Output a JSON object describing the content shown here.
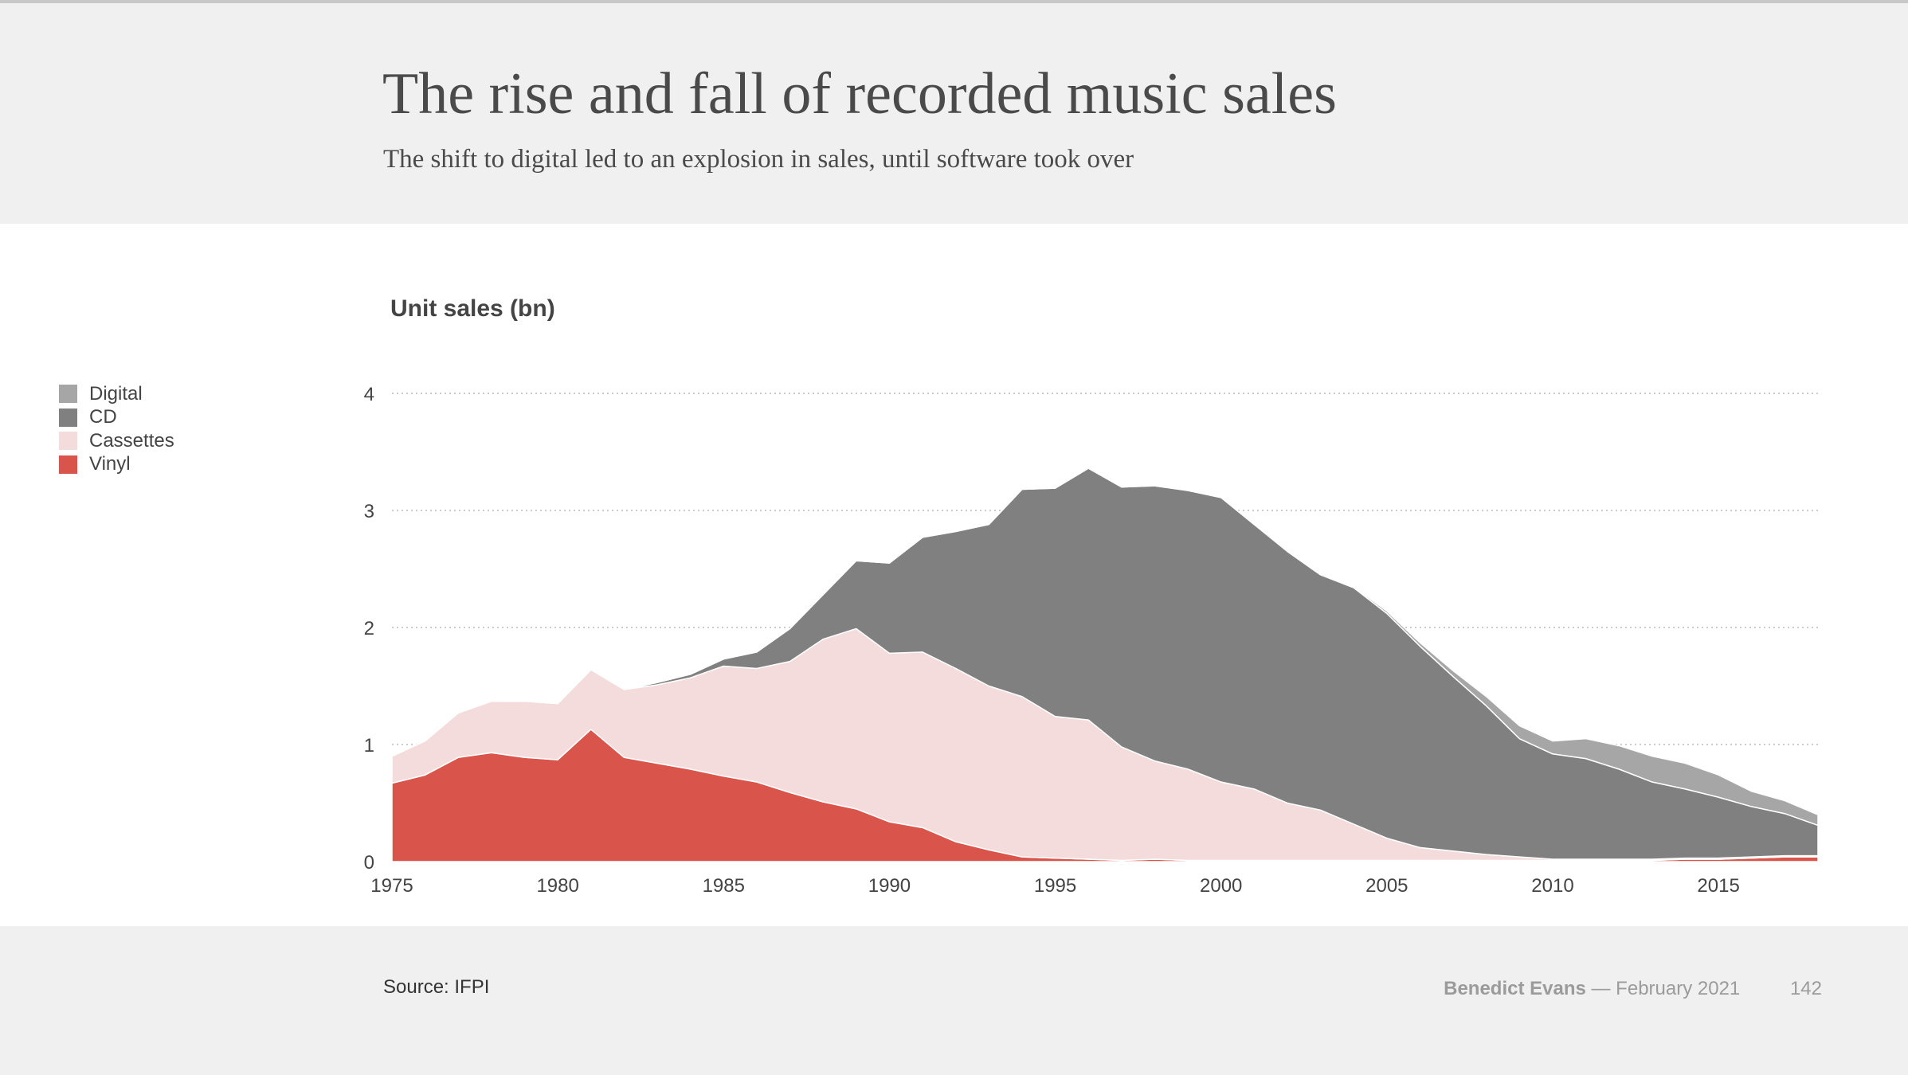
{
  "header": {
    "title": "The rise and fall of recorded music sales",
    "subtitle": "The shift to digital led to an explosion in sales, until software took over"
  },
  "footer": {
    "source": "Source: IFPI",
    "author": "Benedict Evans",
    "date": "— February 2021",
    "page": "142"
  },
  "colors": {
    "Vinyl": "#d9544b",
    "Cassettes": "#f5dcdc",
    "CD": "#808080",
    "Digital": "#a6a6a6",
    "grid": "#bbbbbb"
  },
  "chart_data": {
    "type": "area",
    "stacked": true,
    "title": "The rise and fall of recorded music sales",
    "ylabel": "Unit sales (bn)",
    "xlim": [
      1975,
      2018
    ],
    "ylim": [
      0,
      4
    ],
    "xticks": [
      "1975",
      "1980",
      "1985",
      "1990",
      "1995",
      "2000",
      "2005",
      "2010",
      "2015"
    ],
    "yticks": [
      "0",
      "1",
      "2",
      "3",
      "4"
    ],
    "grid": "horizontal dotted",
    "legend_position": "left",
    "legend": [
      "Digital",
      "CD",
      "Cassettes",
      "Vinyl"
    ],
    "x": [
      1975,
      1976,
      1977,
      1978,
      1979,
      1980,
      1981,
      1982,
      1983,
      1984,
      1985,
      1986,
      1987,
      1988,
      1989,
      1990,
      1991,
      1992,
      1993,
      1994,
      1995,
      1996,
      1997,
      1998,
      1999,
      2000,
      2001,
      2002,
      2003,
      2004,
      2005,
      2006,
      2007,
      2008,
      2009,
      2010,
      2011,
      2012,
      2013,
      2014,
      2015,
      2016,
      2017,
      2018
    ],
    "series": [
      {
        "name": "Vinyl",
        "values": [
          0.67,
          0.74,
          0.89,
          0.93,
          0.89,
          0.87,
          1.13,
          0.89,
          0.84,
          0.79,
          0.73,
          0.68,
          0.59,
          0.51,
          0.45,
          0.34,
          0.29,
          0.17,
          0.1,
          0.04,
          0.03,
          0.02,
          0.01,
          0.02,
          0.01,
          0.01,
          0.01,
          0.01,
          0.01,
          0.01,
          0.01,
          0.01,
          0.01,
          0.01,
          0.01,
          0.01,
          0.01,
          0.01,
          0.01,
          0.02,
          0.02,
          0.03,
          0.04,
          0.04
        ]
      },
      {
        "name": "Cassettes",
        "values": [
          0.23,
          0.29,
          0.38,
          0.44,
          0.48,
          0.48,
          0.51,
          0.58,
          0.67,
          0.78,
          0.94,
          0.97,
          1.12,
          1.39,
          1.54,
          1.44,
          1.5,
          1.48,
          1.4,
          1.37,
          1.21,
          1.19,
          0.97,
          0.84,
          0.78,
          0.67,
          0.61,
          0.49,
          0.43,
          0.31,
          0.19,
          0.11,
          0.08,
          0.05,
          0.03,
          0.01,
          0.01,
          0.01,
          0.01,
          0.01,
          0.01,
          0.01,
          0.01,
          0.01
        ]
      },
      {
        "name": "CD",
        "values": [
          0,
          0,
          0,
          0,
          0,
          0,
          0,
          0,
          0.02,
          0.03,
          0.06,
          0.14,
          0.28,
          0.38,
          0.58,
          0.77,
          0.98,
          1.17,
          1.38,
          1.77,
          1.95,
          2.15,
          2.22,
          2.35,
          2.38,
          2.43,
          2.26,
          2.15,
          2.01,
          2.02,
          1.92,
          1.72,
          1.49,
          1.27,
          1.01,
          0.9,
          0.86,
          0.77,
          0.66,
          0.59,
          0.52,
          0.43,
          0.36,
          0.26
        ]
      },
      {
        "name": "Digital",
        "values": [
          0,
          0,
          0,
          0,
          0,
          0,
          0,
          0,
          0,
          0,
          0,
          0,
          0,
          0,
          0,
          0,
          0,
          0,
          0,
          0,
          0,
          0,
          0,
          0,
          0,
          0,
          0,
          0,
          0,
          0.01,
          0.02,
          0.03,
          0.05,
          0.08,
          0.11,
          0.11,
          0.17,
          0.2,
          0.22,
          0.22,
          0.19,
          0.13,
          0.11,
          0.09
        ]
      }
    ]
  }
}
